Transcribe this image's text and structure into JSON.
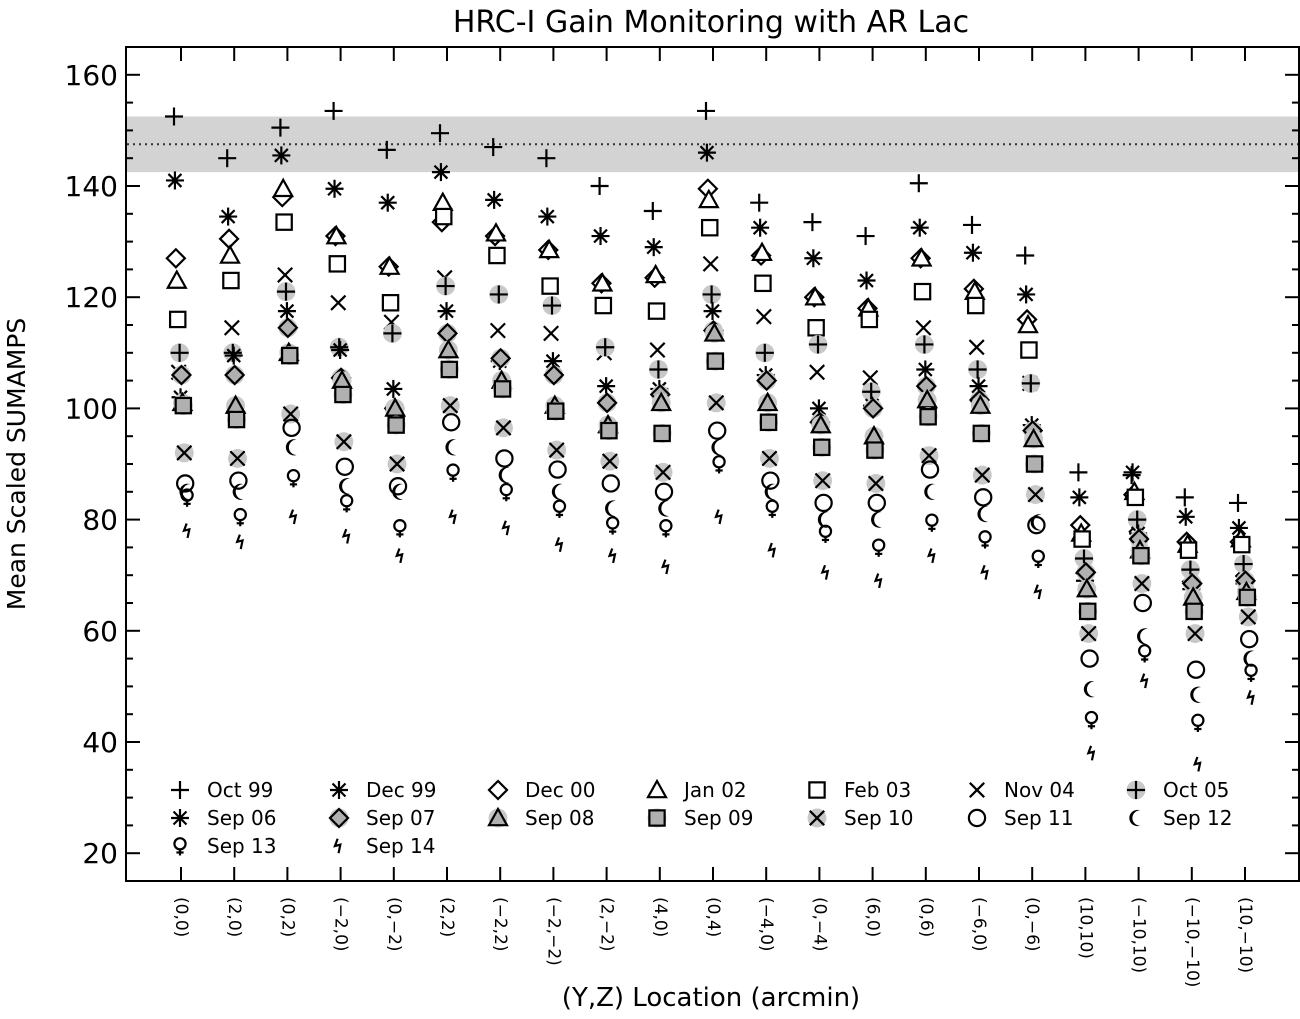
{
  "chart_data": {
    "type": "scatter",
    "title": "HRC-I Gain Monitoring with AR Lac",
    "xlabel": "(Y,Z) Location (arcmin)",
    "ylabel": "Mean Scaled SUMAMPS",
    "ylim": [
      15,
      165
    ],
    "yticks": [
      20,
      40,
      60,
      80,
      100,
      120,
      140,
      160
    ],
    "grid": false,
    "legend_position": "bottom",
    "reference_line": {
      "value": 147.5,
      "style": "dotted"
    },
    "reference_band": {
      "low": 142.5,
      "high": 152.5,
      "color": "#d3d3d3"
    },
    "categories": [
      "(0,0)",
      "(2,0)",
      "(0,2)",
      "(−2,0)",
      "(0,−2)",
      "(2,2)",
      "(−2,2)",
      "(−2,−2)",
      "(2,−2)",
      "(4,0)",
      "(0,4)",
      "(−4,0)",
      "(0,−4)",
      "(6,0)",
      "(0,6)",
      "(−6,0)",
      "(0,−6)",
      "(10,10)",
      "(−10,10)",
      "(−10,−10)",
      "(10,−10)"
    ],
    "series": [
      {
        "name": "Oct 99",
        "marker": "plus",
        "fill": "none",
        "values": [
          152.5,
          145,
          150.5,
          153.5,
          146.5,
          149.5,
          147,
          145,
          140,
          135.5,
          153.5,
          137,
          133.5,
          131,
          140.5,
          133,
          127.5,
          88.5,
          88,
          84,
          83
        ]
      },
      {
        "name": "Dec 99",
        "marker": "star",
        "fill": "none",
        "values": [
          141,
          134.5,
          145.5,
          139.5,
          137,
          142.5,
          137.5,
          134.5,
          131,
          129,
          146,
          132.5,
          127,
          123,
          132.5,
          128,
          120.5,
          84,
          88.5,
          80.5,
          78.5
        ]
      },
      {
        "name": "Dec 00",
        "marker": "diamond",
        "fill": "none",
        "values": [
          127,
          130.5,
          138,
          131,
          125.5,
          133.5,
          131,
          128.5,
          122.5,
          123.5,
          139.5,
          127.5,
          120,
          118,
          127,
          121.5,
          116,
          79,
          84.5,
          76,
          76
        ]
      },
      {
        "name": "Jan 02",
        "marker": "triangle",
        "fill": "none",
        "values": [
          123,
          127.5,
          139.5,
          131,
          125.5,
          137,
          131.5,
          128.5,
          122.5,
          124,
          137.5,
          128,
          120,
          118,
          127,
          121,
          115,
          77.5,
          85,
          75.5,
          76.5
        ]
      },
      {
        "name": "Feb 03",
        "marker": "square",
        "fill": "none",
        "values": [
          116,
          123,
          133.5,
          126,
          119,
          134.5,
          127.5,
          122,
          118.5,
          117.5,
          132.5,
          122.5,
          114.5,
          116,
          121,
          118.5,
          110.5,
          76.5,
          84,
          74.5,
          75.5
        ]
      },
      {
        "name": "Nov 04",
        "marker": "x",
        "fill": "none",
        "values": [
          106.5,
          114.5,
          124,
          119,
          115.5,
          123.5,
          114,
          113.5,
          110,
          110.5,
          126,
          116.5,
          106.5,
          105.5,
          114.5,
          111,
          104.5,
          71.5,
          79,
          70,
          71
        ]
      },
      {
        "name": "Oct 05",
        "marker": "plus",
        "fill": "#c8c8c8",
        "values": [
          110,
          110,
          121,
          111,
          113.5,
          122,
          120.5,
          118.5,
          111,
          107,
          120.5,
          110,
          111.5,
          103,
          111.5,
          107,
          104.5,
          73,
          80,
          71,
          72
        ]
      },
      {
        "name": "Sep 06",
        "marker": "star",
        "fill": "none",
        "values": [
          102,
          109.5,
          117.5,
          110.5,
          103.5,
          117.5,
          108.5,
          108.5,
          104,
          103.5,
          117.5,
          106,
          100,
          100.5,
          107,
          104,
          97,
          69,
          77.5,
          67.5,
          68.5
        ]
      },
      {
        "name": "Sep 07",
        "marker": "diamond",
        "fill": "#c8c8c8",
        "values": [
          106,
          106,
          114.5,
          105.5,
          100,
          113.5,
          109,
          106,
          101,
          102.5,
          114,
          105,
          97.5,
          100,
          104,
          101.5,
          96,
          70.5,
          76.5,
          68.5,
          69
        ]
      },
      {
        "name": "Sep 08",
        "marker": "triangle",
        "fill": "#c8c8c8",
        "values": [
          101,
          100.5,
          110,
          105,
          100,
          110.5,
          105,
          100.5,
          97,
          101,
          113.5,
          101,
          97,
          95,
          101.5,
          100.5,
          94.5,
          67.5,
          74.5,
          66,
          67
        ]
      },
      {
        "name": "Sep 09",
        "marker": "square",
        "fill": "#c8c8c8",
        "values": [
          100.5,
          98,
          109.5,
          102.5,
          97,
          107,
          103.5,
          99.5,
          96,
          95.5,
          108.5,
          97.5,
          93,
          92.5,
          98.5,
          95.5,
          90,
          63.5,
          73.5,
          63.5,
          66
        ]
      },
      {
        "name": "Sep 10",
        "marker": "x",
        "fill": "#c8c8c8",
        "values": [
          92,
          91,
          99,
          94,
          90,
          100.5,
          96.5,
          92.5,
          90.5,
          88.5,
          101,
          91,
          87,
          86.5,
          91.5,
          88,
          84.5,
          59.5,
          68.5,
          59.5,
          62.5
        ]
      },
      {
        "name": "Sep 11",
        "marker": "circle",
        "fill": "none",
        "values": [
          86.5,
          87,
          96.5,
          89.5,
          86,
          97.5,
          91,
          89,
          86.5,
          85,
          96,
          87,
          83,
          83,
          89,
          84,
          79,
          55,
          65,
          53,
          58.5
        ]
      },
      {
        "name": "Sep 12",
        "marker": "moon",
        "fill": "none",
        "values": [
          85,
          85,
          93,
          86,
          85,
          93,
          88,
          85,
          82,
          82,
          93,
          85,
          80,
          80,
          85,
          81,
          79.5,
          49.5,
          59,
          48.5,
          55
        ]
      },
      {
        "name": "Sep 13",
        "marker": "venus",
        "fill": "none",
        "values": [
          84,
          80.5,
          87.5,
          83,
          78.5,
          88.5,
          85,
          82,
          79,
          78.5,
          90,
          82,
          77.5,
          75,
          79.5,
          76.5,
          73,
          44,
          56,
          43.5,
          52.5
        ]
      },
      {
        "name": "Sep 14",
        "marker": "bolt",
        "fill": "none",
        "values": [
          78,
          76,
          80.5,
          77,
          73.5,
          80.5,
          78.5,
          75.5,
          73.5,
          71.5,
          80.5,
          74.5,
          70.5,
          69,
          73.5,
          70.5,
          67,
          38,
          51,
          36,
          48
        ]
      }
    ]
  }
}
